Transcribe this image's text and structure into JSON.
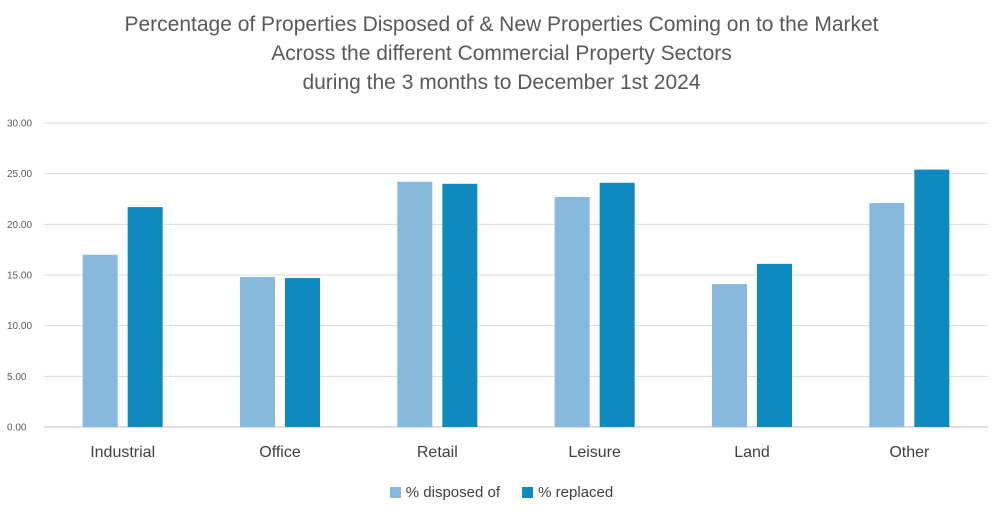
{
  "chart_data": {
    "type": "bar",
    "title_lines": [
      "Percentage of Properties Disposed of & New Properties Coming on to the Market",
      "Across the different Commercial Property Sectors",
      "during the 3 months to December 1st 2024"
    ],
    "categories": [
      "Industrial",
      "Office",
      "Retail",
      "Leisure",
      "Land",
      "Other"
    ],
    "series": [
      {
        "name": "% disposed of",
        "color": "#87B9DF",
        "values": [
          17.0,
          14.8,
          24.2,
          22.7,
          14.1,
          22.1
        ]
      },
      {
        "name": "% replaced",
        "color": "#0E8ABE",
        "values": [
          21.7,
          14.7,
          24.0,
          24.1,
          16.1,
          25.4
        ]
      }
    ],
    "ylim": [
      0,
      30
    ],
    "yticks": [
      "0.00",
      "5.00",
      "10.00",
      "15.00",
      "20.00",
      "25.00",
      "30.00"
    ],
    "grid": true,
    "legend": "bottom"
  }
}
